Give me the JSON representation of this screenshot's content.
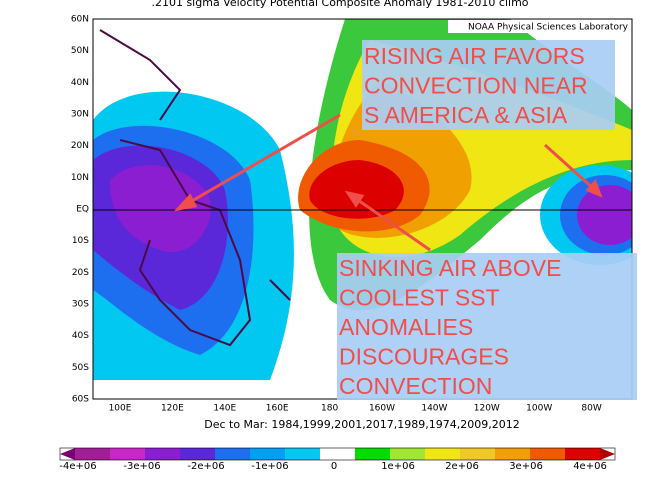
{
  "header": {
    "title": ".2101 sigma Velocity Potential   Composite Anomaly 1981-2010 climo",
    "credit": "NOAA Physical Sciences Laboratory"
  },
  "map": {
    "lat_labels": [
      "60N",
      "50N",
      "40N",
      "30N",
      "20N",
      "10N",
      "EQ",
      "10S",
      "20S",
      "30S",
      "40S",
      "50S",
      "60S"
    ],
    "lon_labels": [
      "100E",
      "120E",
      "140E",
      "160E",
      "180",
      "160W",
      "140W",
      "120W",
      "100W",
      "80W"
    ],
    "subtitle": "Dec to Mar: 1984,1999,2001,2017,1989,1974,2009,2012"
  },
  "colorbar": {
    "labels": [
      "-4e+06",
      "-3e+06",
      "-2e+06",
      "-1e+06",
      "0",
      "1e+06",
      "2e+06",
      "3e+06",
      "4e+06"
    ]
  },
  "annotations": [
    {
      "lines": [
        "RISING AIR FAVORS",
        "CONVECTION NEAR",
        "S AMERICA & ASIA"
      ]
    },
    {
      "lines": [
        "SINKING AIR ABOVE",
        "COOLEST SST",
        "ANOMALIES",
        "DISCOURAGES",
        "CONVECTION"
      ]
    }
  ]
}
